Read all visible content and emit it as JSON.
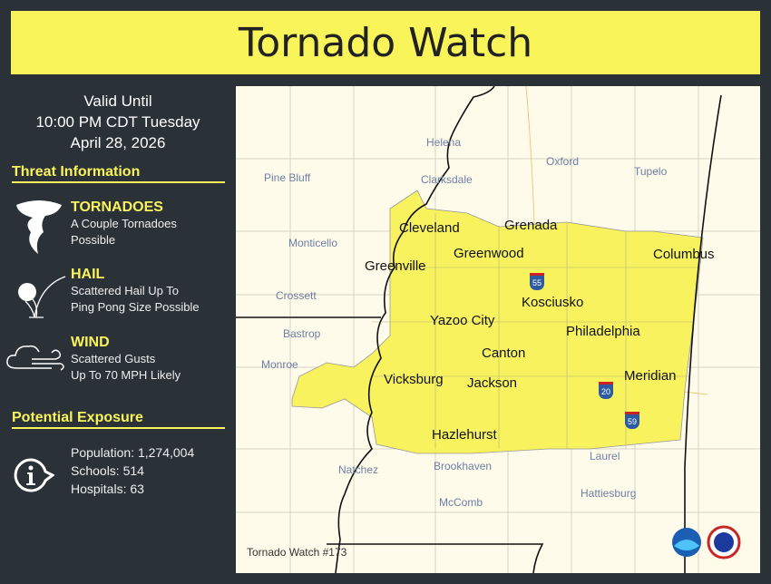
{
  "title": "Tornado Watch",
  "valid": {
    "line1": "Valid Until",
    "line2": "10:00 PM CDT Tuesday",
    "line3": "April 28, 2026"
  },
  "threat_heading": "Threat Information",
  "threats": [
    {
      "title": "TORNADOES",
      "line1": "A Couple Tornadoes",
      "line2": "Possible",
      "icon": "tornado-icon"
    },
    {
      "title": "HAIL",
      "line1": "Scattered Hail Up To",
      "line2": "Ping Pong Size Possible",
      "icon": "hail-icon"
    },
    {
      "title": "WIND",
      "line1": "Scattered Gusts",
      "line2": "Up To 70 MPH Likely",
      "icon": "wind-icon"
    }
  ],
  "exposure_heading": "Potential Exposure",
  "exposure": {
    "population": "Population: 1,274,004",
    "schools": "Schools: 514",
    "hospitals": "Hospitals: 63"
  },
  "map": {
    "watch_cities": [
      "Cleveland",
      "Grenada",
      "Greenwood",
      "Columbus",
      "Greenville",
      "Kosciusko",
      "Yazoo City",
      "Philadelphia",
      "Canton",
      "Vicksburg",
      "Jackson",
      "Meridian",
      "Hazlehurst"
    ],
    "other_cities": [
      "Helena",
      "Oxford",
      "Tupelo",
      "Pine Bluff",
      "Clarksdale",
      "Monticello",
      "Crossett",
      "Bastrop",
      "Monroe",
      "Natchez",
      "Brookhaven",
      "Laurel",
      "Hattiesburg",
      "McComb"
    ],
    "interstates": [
      "55",
      "20",
      "59"
    ],
    "footer": "Tornado Watch #173",
    "colors": {
      "watch_area": "#f7f25e",
      "land": "#fffbea",
      "banner": "#f9f45a"
    }
  }
}
